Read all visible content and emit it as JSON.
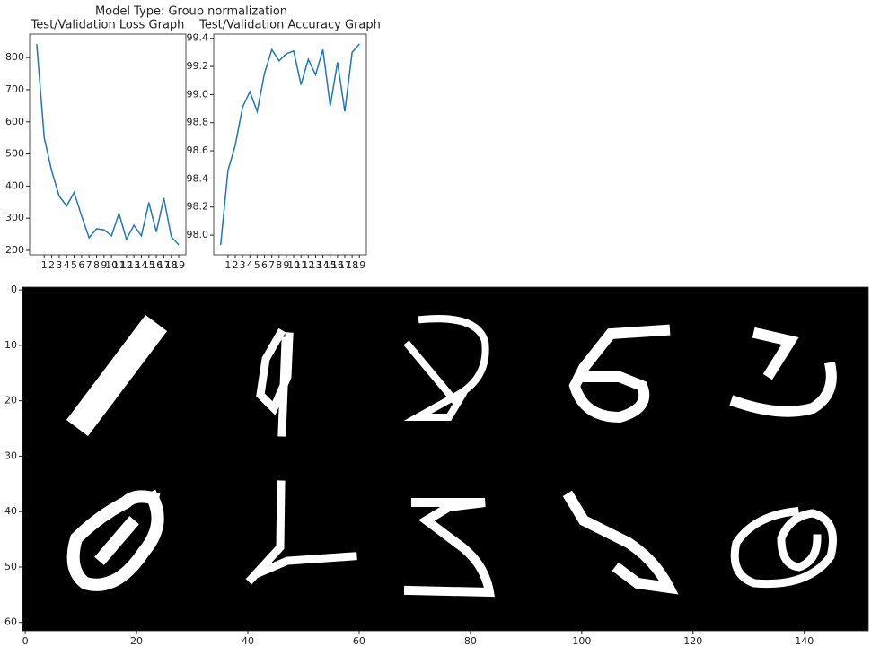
{
  "title": "Model Type: Group normalization",
  "chart_data": [
    {
      "type": "line",
      "title": "Test/Validation Loss Graph",
      "series": [
        {
          "color": "#1f77b4",
          "x": [
            0,
            1,
            2,
            3,
            4,
            5,
            6,
            7,
            8,
            9,
            10,
            11,
            12,
            13,
            14,
            15,
            16,
            17,
            18,
            19
          ],
          "values": [
            842,
            551,
            447,
            369,
            338,
            380,
            307,
            239,
            267,
            264,
            245,
            315,
            234,
            278,
            245,
            349,
            257,
            363,
            242,
            217
          ]
        }
      ],
      "xlim": [
        -0.95,
        19.95
      ],
      "xticks": [
        1,
        2,
        3,
        4,
        5,
        6,
        7,
        8,
        9,
        10,
        11,
        12,
        13,
        14,
        15,
        16,
        17,
        18,
        19
      ],
      "ylim": [
        186,
        873
      ],
      "yticks": [
        200,
        300,
        400,
        500,
        600,
        700,
        800
      ]
    },
    {
      "type": "line",
      "title": "Test/Validation Accuracy Graph",
      "series": [
        {
          "color": "#1f77b4",
          "x": [
            0,
            1,
            2,
            3,
            4,
            5,
            6,
            7,
            8,
            9,
            10,
            11,
            12,
            13,
            14,
            15,
            16,
            17,
            18,
            19
          ],
          "values": [
            97.93,
            98.46,
            98.64,
            98.91,
            99.02,
            98.88,
            99.15,
            99.32,
            99.24,
            99.29,
            99.31,
            99.07,
            99.25,
            99.14,
            99.32,
            98.92,
            99.23,
            98.88,
            99.3,
            99.36
          ]
        }
      ],
      "xlim": [
        -0.95,
        19.95
      ],
      "xticks": [
        1,
        2,
        3,
        4,
        5,
        6,
        7,
        8,
        9,
        10,
        11,
        12,
        13,
        14,
        15,
        16,
        17,
        18,
        19
      ],
      "ylim": [
        97.86,
        99.43
      ],
      "yticks": [
        {
          "value": 98.0,
          "label": "98.0"
        },
        98.2,
        98.4,
        98.6,
        98.8,
        {
          "value": 99.0,
          "label": "99.0"
        },
        99.2,
        99.4
      ]
    },
    {
      "type": "image",
      "xlim": [
        -0.5,
        151.5
      ],
      "xticks": [
        0,
        20,
        40,
        60,
        80,
        100,
        120,
        140
      ],
      "ylim": [
        61.5,
        -0.5
      ],
      "yticks": [
        0,
        10,
        20,
        30,
        40,
        50,
        60
      ]
    }
  ]
}
